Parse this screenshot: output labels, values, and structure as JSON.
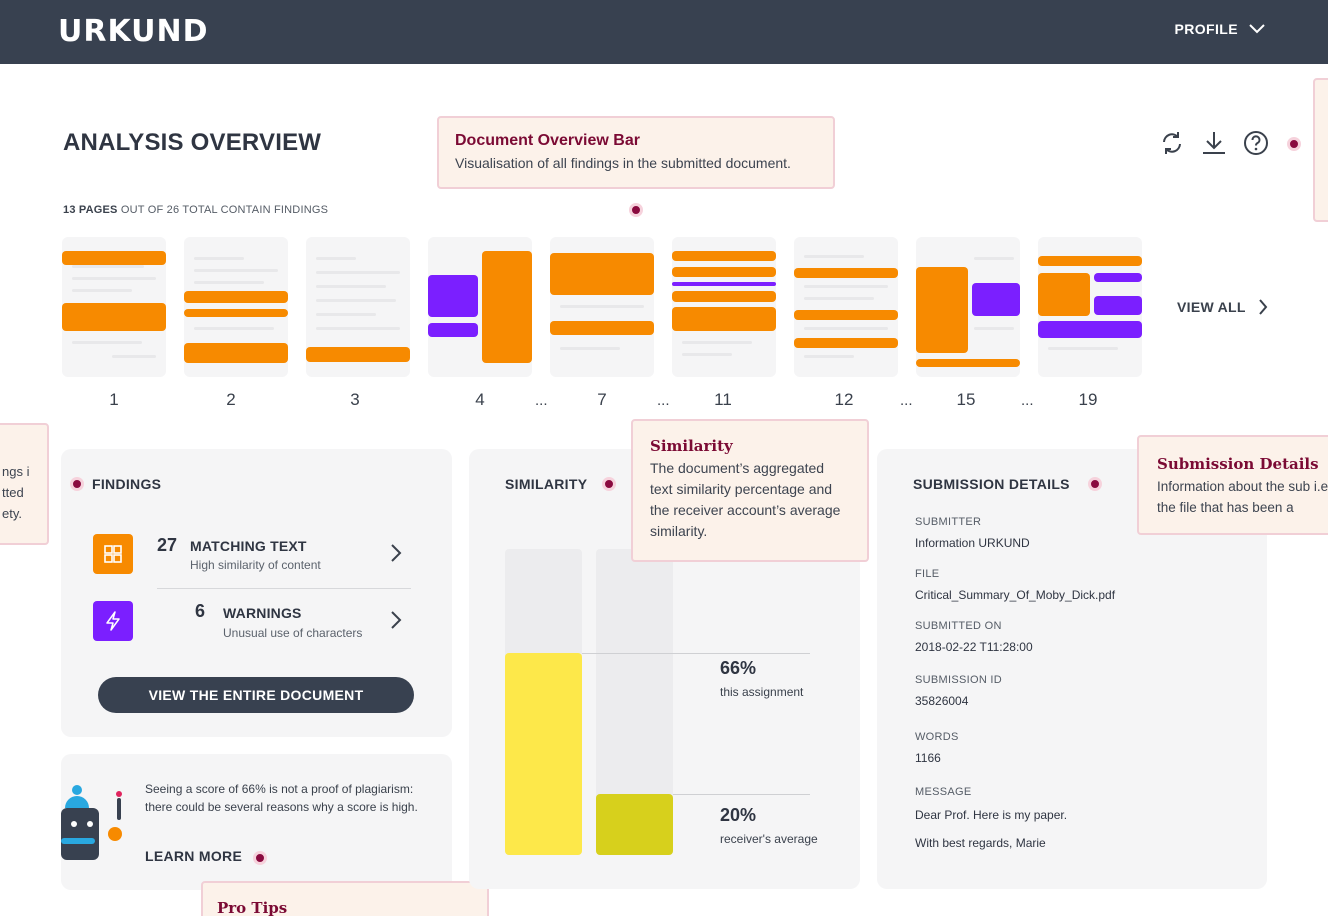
{
  "header": {
    "logo": "URKUND",
    "profile_label": "PROFILE"
  },
  "page_title": "ANALYSIS OVERVIEW",
  "pages_summary": {
    "count": "13 PAGES",
    "text": "OUT OF 26 TOTAL CONTAIN FINDINGS"
  },
  "toolbar": {
    "icons": [
      "refresh-icon",
      "download-icon",
      "help-icon"
    ]
  },
  "callouts": {
    "overview_bar": {
      "title": "Document Overview Bar",
      "desc": "Visualisation of all findings in the submitted document."
    },
    "similarity": {
      "title": "Similarity",
      "desc": "The document’s aggregated text similarity percentage and the receiver account’s average similarity."
    },
    "submission": {
      "title": "Submission Details",
      "desc": "Information about the sub i.e. the file that has been a"
    },
    "left_partial": {
      "desc": "ngs itted ety."
    },
    "pro_tips": {
      "title": "Pro Tips"
    }
  },
  "thumbnails": {
    "pages": [
      "1",
      "2",
      "3",
      "4",
      "7",
      "11",
      "12",
      "15",
      "19"
    ],
    "ellipsis": "...",
    "view_all": "VIEW ALL"
  },
  "findings": {
    "title": "FINDINGS",
    "items": [
      {
        "count": "27",
        "label": "MATCHING TEXT",
        "sub": "High similarity of content",
        "icon": "grid-icon",
        "color": "#f78a00"
      },
      {
        "count": "6",
        "label": "WARNINGS",
        "sub": "Unusual use of characters",
        "icon": "lightning-icon",
        "color": "#7b1fff"
      }
    ],
    "button": "VIEW THE ENTIRE DOCUMENT"
  },
  "tips": {
    "text": "Seeing a score of 66% is not a proof of plagiarism: there could be several reasons why a score is high.",
    "learn_more": "LEARN MORE"
  },
  "similarity": {
    "title": "SIMILARITY",
    "assignment": {
      "value": 66,
      "display": "66%",
      "label": "this assignment",
      "color": "#fde84a"
    },
    "average": {
      "value": 20,
      "display": "20%",
      "label": "receiver's average",
      "color": "#d7d01c"
    }
  },
  "submission_details": {
    "title": "SUBMISSION DETAILS",
    "fields": [
      {
        "label": "SUBMITTER",
        "value": "Information URKUND"
      },
      {
        "label": "FILE",
        "value": "Critical_Summary_Of_Moby_Dick.pdf"
      },
      {
        "label": "SUBMITTED ON",
        "value": "2018-02-22 T11:28:00"
      },
      {
        "label": "SUBMISSION ID",
        "value": "35826004"
      },
      {
        "label": "WORDS",
        "value": "1166"
      },
      {
        "label": "MESSAGE",
        "value": "Dear Prof. Here is my paper."
      }
    ],
    "message_line2": "With best regards, Marie"
  },
  "colors": {
    "accent_orange": "#f78a00",
    "accent_purple": "#7b1fff",
    "header_bg": "#384150",
    "dot": "#8a0a3f"
  }
}
